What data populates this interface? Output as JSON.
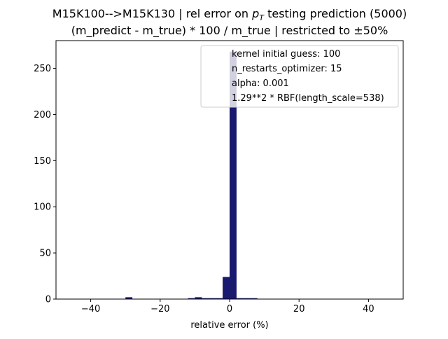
{
  "chart_data": {
    "type": "bar",
    "title_lines": [
      "M15K100-->M15K130 | rel error on p_T testing prediction (5000)",
      "(m_predict - m_true) * 100 / m_true | restricted to ±50%"
    ],
    "title_main_prefix": "M15K100-->M15K130 | rel error on ",
    "title_main_symbol": "p",
    "title_main_subscript": "T",
    "title_main_suffix": " testing prediction (5000)",
    "title_second": "(m_predict - m_true) * 100 / m_true | restricted to ±50%",
    "xlabel": "relative error (%)",
    "ylabel": "",
    "xlim": [
      -50,
      50
    ],
    "ylim": [
      0,
      280
    ],
    "x_ticks": [
      -40,
      -20,
      0,
      20,
      40
    ],
    "x_tick_labels": [
      "−40",
      "−20",
      "0",
      "20",
      "40"
    ],
    "y_ticks": [
      0,
      50,
      100,
      150,
      200,
      250
    ],
    "y_tick_labels": [
      "0",
      "50",
      "100",
      "150",
      "200",
      "250"
    ],
    "bin_width": 2,
    "bins": [
      {
        "x0": -30,
        "x1": -28,
        "value": 2
      },
      {
        "x0": -12,
        "x1": -10,
        "value": 1
      },
      {
        "x0": -10,
        "x1": -8,
        "value": 2
      },
      {
        "x0": -8,
        "x1": -6,
        "value": 1
      },
      {
        "x0": -6,
        "x1": -4,
        "value": 1
      },
      {
        "x0": -4,
        "x1": -2,
        "value": 1
      },
      {
        "x0": -2,
        "x1": 0,
        "value": 24
      },
      {
        "x0": 0,
        "x1": 2,
        "value": 268
      },
      {
        "x0": 2,
        "x1": 4,
        "value": 1
      },
      {
        "x0": 4,
        "x1": 6,
        "value": 1
      },
      {
        "x0": 6,
        "x1": 8,
        "value": 1
      }
    ],
    "bar_color": "#191970",
    "legend_position": "upper right",
    "legend_entries": [
      "kernel initial guess: 100",
      "n_restarts_optimizer: 15",
      "alpha: 0.001",
      "1.29**2 * RBF(length_scale=538)"
    ],
    "grid": false
  }
}
